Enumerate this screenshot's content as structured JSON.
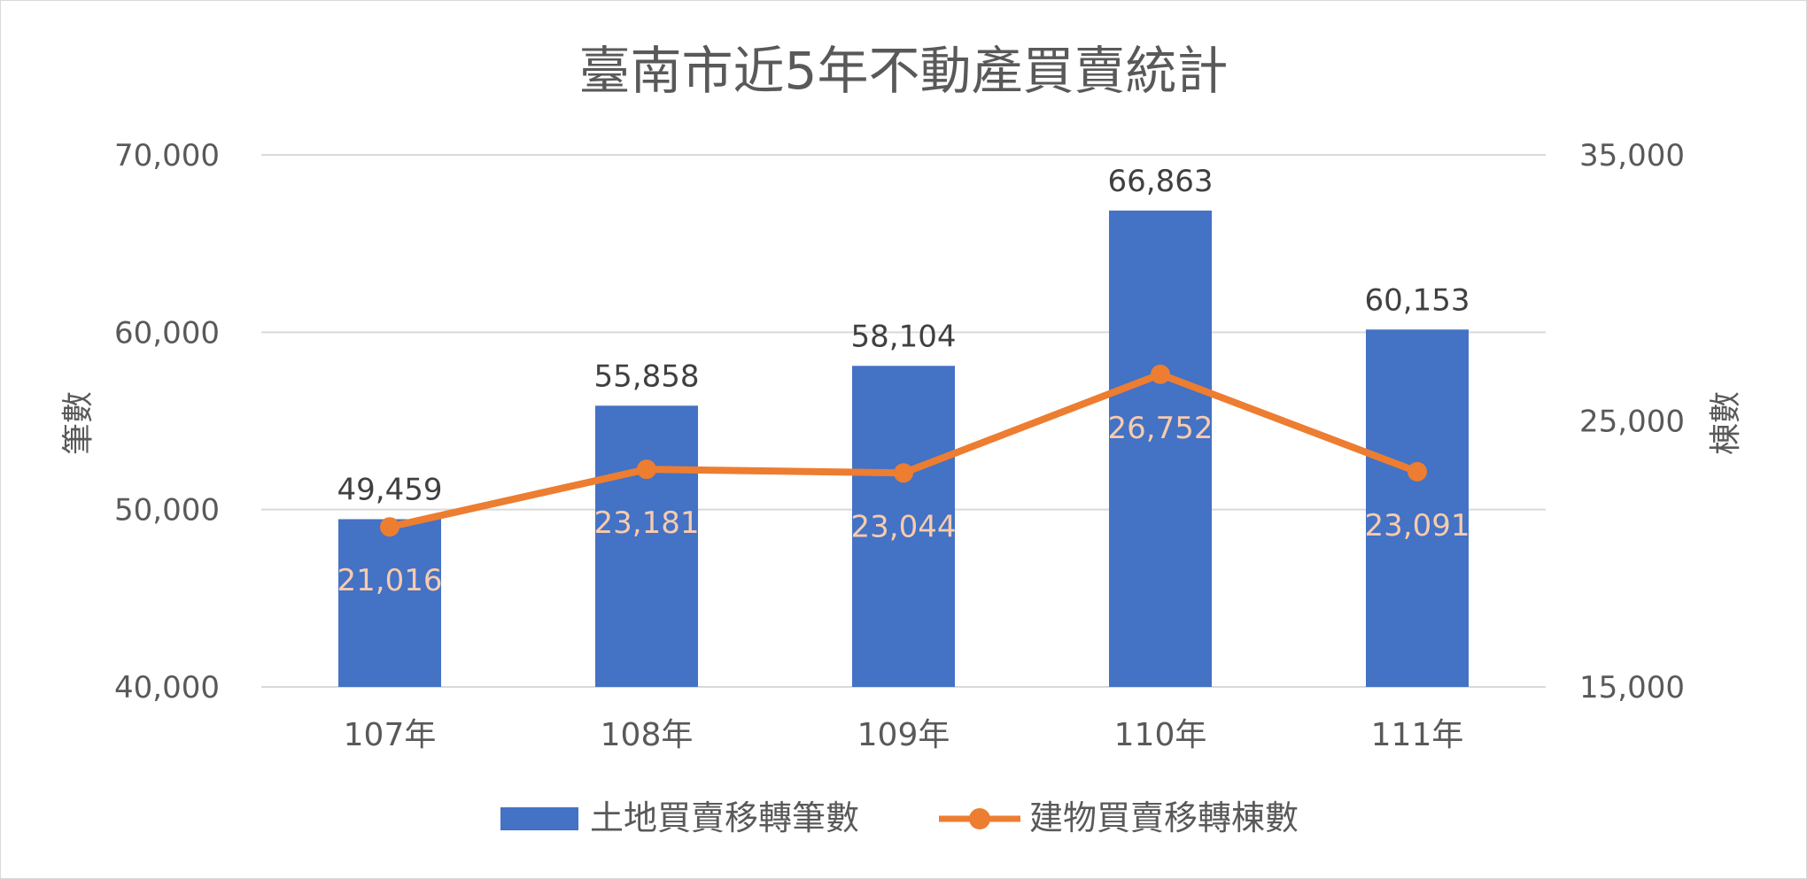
{
  "chart_data": {
    "type": "bar",
    "title": "臺南市近5年不動產買賣統計",
    "categories": [
      "107年",
      "108年",
      "109年",
      "110年",
      "111年"
    ],
    "series": [
      {
        "name": "土地買賣移轉筆數",
        "type": "bar",
        "axis": "left",
        "color": "#4472C4",
        "values": [
          49459,
          55858,
          58104,
          66863,
          60153
        ],
        "labels": [
          "49,459",
          "55,858",
          "58,104",
          "66,863",
          "60,153"
        ]
      },
      {
        "name": "建物買賣移轉棟數",
        "type": "line",
        "axis": "right",
        "color": "#ED7D31",
        "values": [
          21016,
          23181,
          23044,
          26752,
          23091
        ],
        "labels": [
          "21,016",
          "23,181",
          "23,044",
          "26,752",
          "23,091"
        ]
      }
    ],
    "ylabel": "筆數",
    "y2label": "棟數",
    "ylim": [
      40000,
      70000
    ],
    "y2lim": [
      15000,
      35000
    ],
    "yticks": [
      "40,000",
      "50,000",
      "60,000",
      "70,000"
    ],
    "y2ticks": [
      "15,000",
      "25,000",
      "35,000"
    ],
    "grid": true,
    "legend": "bottom"
  }
}
